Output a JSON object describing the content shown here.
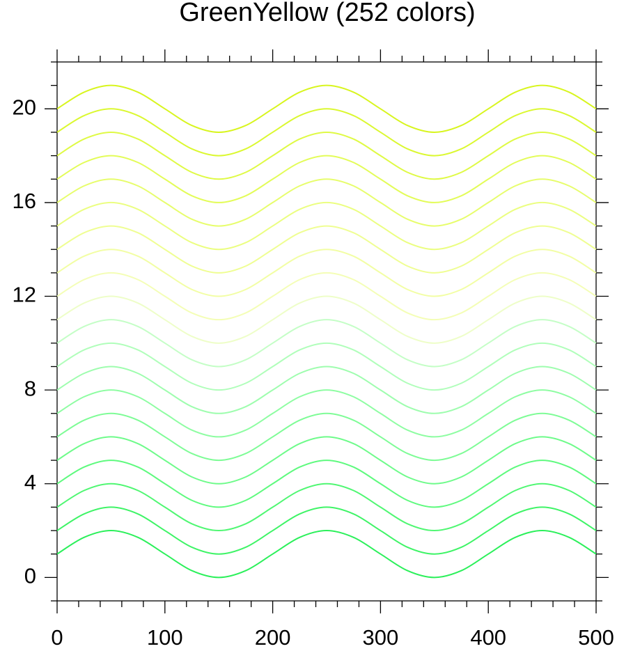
{
  "chart_data": {
    "type": "line",
    "title": "GreenYellow (252 colors)",
    "x": [
      0,
      25,
      50,
      75,
      100,
      125,
      150,
      175,
      200,
      225,
      250,
      275,
      300,
      325,
      350,
      375,
      400,
      425,
      450,
      475,
      500
    ],
    "series": [
      {
        "color": "#2bf05a",
        "values": [
          1,
          1.71,
          2,
          1.71,
          1,
          0.29,
          0,
          0.29,
          1,
          1.71,
          2,
          1.71,
          1,
          0.29,
          0,
          0.29,
          1,
          1.71,
          2,
          1.71,
          1
        ]
      },
      {
        "color": "#3ef466",
        "values": [
          2,
          2.71,
          3,
          2.71,
          2,
          1.29,
          1,
          1.29,
          2,
          2.71,
          3,
          2.71,
          2,
          1.29,
          1,
          1.29,
          2,
          2.71,
          3,
          2.71,
          2
        ]
      },
      {
        "color": "#4ff772",
        "values": [
          3,
          3.71,
          4,
          3.71,
          3,
          2.29,
          2,
          2.29,
          3,
          3.71,
          4,
          3.71,
          3,
          2.29,
          2,
          2.29,
          3,
          3.71,
          4,
          3.71,
          3
        ]
      },
      {
        "color": "#5efa7e",
        "values": [
          4,
          4.71,
          5,
          4.71,
          4,
          3.29,
          3,
          3.29,
          4,
          4.71,
          5,
          4.71,
          4,
          3.29,
          3,
          3.29,
          4,
          4.71,
          5,
          4.71,
          4
        ]
      },
      {
        "color": "#6efb8a",
        "values": [
          5,
          5.71,
          6,
          5.71,
          5,
          4.29,
          4,
          4.29,
          5,
          5.71,
          6,
          5.71,
          5,
          4.29,
          4,
          4.29,
          5,
          5.71,
          6,
          5.71,
          5
        ]
      },
      {
        "color": "#7efc96",
        "values": [
          6,
          6.71,
          7,
          6.71,
          6,
          5.29,
          5,
          5.29,
          6,
          6.71,
          7,
          6.71,
          6,
          5.29,
          5,
          5.29,
          6,
          6.71,
          7,
          6.71,
          6
        ]
      },
      {
        "color": "#8efda2",
        "values": [
          7,
          7.71,
          8,
          7.71,
          7,
          6.29,
          6,
          6.29,
          7,
          7.71,
          8,
          7.71,
          7,
          6.29,
          6,
          6.29,
          7,
          7.71,
          8,
          7.71,
          7
        ]
      },
      {
        "color": "#9efdae",
        "values": [
          8,
          8.71,
          9,
          8.71,
          8,
          7.29,
          7,
          7.29,
          8,
          8.71,
          9,
          8.71,
          8,
          7.29,
          7,
          7.29,
          8,
          8.71,
          9,
          8.71,
          8
        ]
      },
      {
        "color": "#b0feba",
        "values": [
          9,
          9.71,
          10,
          9.71,
          9,
          8.29,
          8,
          8.29,
          9,
          9.71,
          10,
          9.71,
          9,
          8.29,
          8,
          8.29,
          9,
          9.71,
          10,
          9.71,
          9
        ]
      },
      {
        "color": "#c4fec6",
        "values": [
          10,
          10.71,
          11,
          10.71,
          10,
          9.29,
          9,
          9.29,
          10,
          10.71,
          11,
          10.71,
          10,
          9.29,
          9,
          9.29,
          10,
          10.71,
          11,
          10.71,
          10
        ]
      },
      {
        "color": "#eefec8",
        "values": [
          11,
          11.71,
          12,
          11.71,
          11,
          10.29,
          10,
          10.29,
          11,
          11.71,
          12,
          11.71,
          11,
          10.29,
          10,
          10.29,
          11,
          11.71,
          12,
          11.71,
          11
        ]
      },
      {
        "color": "#f4feb6",
        "values": [
          12,
          12.71,
          13,
          12.71,
          12,
          11.29,
          11,
          11.29,
          12,
          12.71,
          13,
          12.71,
          12,
          11.29,
          11,
          11.29,
          12,
          12.71,
          13,
          12.71,
          12
        ]
      },
      {
        "color": "#f2fea4",
        "values": [
          13,
          13.71,
          14,
          13.71,
          13,
          12.29,
          12,
          12.29,
          13,
          13.71,
          14,
          13.71,
          13,
          12.29,
          12,
          12.29,
          13,
          13.71,
          14,
          13.71,
          13
        ]
      },
      {
        "color": "#effe92",
        "values": [
          14,
          14.71,
          15,
          14.71,
          14,
          13.29,
          13,
          13.29,
          14,
          14.71,
          15,
          14.71,
          14,
          13.29,
          13,
          13.29,
          14,
          14.71,
          15,
          14.71,
          14
        ]
      },
      {
        "color": "#ebfe80",
        "values": [
          15,
          15.71,
          16,
          15.71,
          15,
          14.29,
          14,
          14.29,
          15,
          15.71,
          16,
          15.71,
          15,
          14.29,
          14,
          14.29,
          15,
          15.71,
          16,
          15.71,
          15
        ]
      },
      {
        "color": "#e7fd6c",
        "values": [
          16,
          16.71,
          17,
          16.71,
          16,
          15.29,
          15,
          15.29,
          16,
          16.71,
          17,
          16.71,
          16,
          15.29,
          15,
          15.29,
          16,
          16.71,
          17,
          16.71,
          16
        ]
      },
      {
        "color": "#e3fc58",
        "values": [
          17,
          17.71,
          18,
          17.71,
          17,
          16.29,
          16,
          16.29,
          17,
          17.71,
          18,
          17.71,
          17,
          16.29,
          16,
          16.29,
          17,
          17.71,
          18,
          17.71,
          17
        ]
      },
      {
        "color": "#dffa44",
        "values": [
          18,
          18.71,
          19,
          18.71,
          18,
          17.29,
          17,
          17.29,
          18,
          18.71,
          19,
          18.71,
          18,
          17.29,
          17,
          17.29,
          18,
          18.71,
          19,
          18.71,
          18
        ]
      },
      {
        "color": "#dbf830",
        "values": [
          19,
          19.71,
          20,
          19.71,
          19,
          18.29,
          18,
          18.29,
          19,
          19.71,
          20,
          19.71,
          19,
          18.29,
          18,
          18.29,
          19,
          19.71,
          20,
          19.71,
          19
        ]
      },
      {
        "color": "#d8f51e",
        "values": [
          20,
          20.71,
          21,
          20.71,
          20,
          19.29,
          19,
          19.29,
          20,
          20.71,
          21,
          20.71,
          20,
          19.29,
          19,
          19.29,
          20,
          20.71,
          21,
          20.71,
          20
        ]
      }
    ],
    "xlim": [
      0,
      500
    ],
    "xticks": [
      0,
      100,
      200,
      300,
      400,
      500
    ],
    "xminorticks": [
      20,
      40,
      60,
      80,
      120,
      140,
      160,
      180,
      220,
      240,
      260,
      280,
      320,
      340,
      360,
      380,
      420,
      440,
      460,
      480
    ],
    "ylim": [
      -1,
      22
    ],
    "yticks": [
      0,
      4,
      8,
      12,
      16,
      20
    ],
    "yminorticks": [
      -1,
      1,
      2,
      3,
      5,
      6,
      7,
      9,
      10,
      11,
      13,
      14,
      15,
      17,
      18,
      19,
      21,
      22
    ]
  }
}
